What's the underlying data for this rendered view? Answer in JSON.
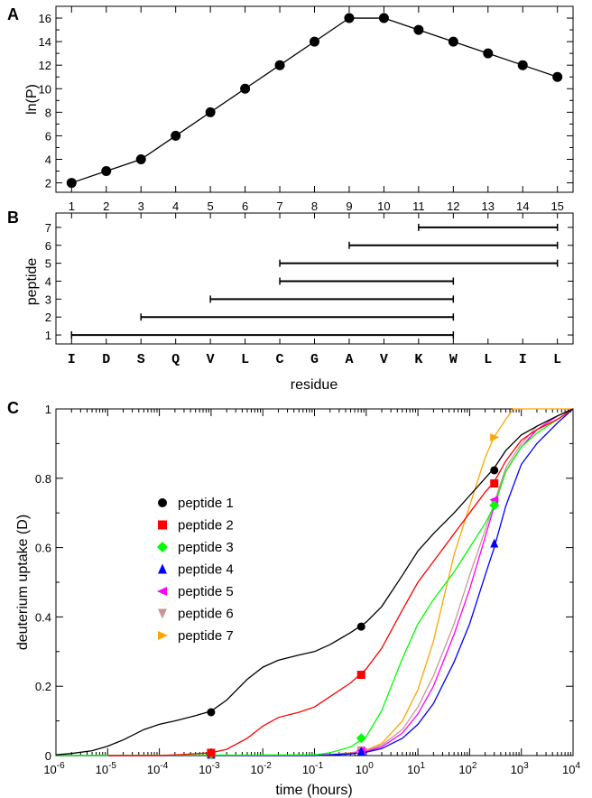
{
  "chart_data": [
    {
      "panel_label": "A",
      "type": "line",
      "xlabel": "",
      "ylabel": "ln(P)",
      "xlim": [
        0.55,
        15.45
      ],
      "ylim": [
        1.2,
        17
      ],
      "x_ticks": [
        1,
        2,
        3,
        4,
        5,
        6,
        7,
        8,
        9,
        10,
        11,
        12,
        13,
        14,
        15
      ],
      "y_ticks": [
        2,
        4,
        6,
        8,
        10,
        12,
        14,
        16
      ],
      "grid": false,
      "series": [
        {
          "x": [
            1,
            2,
            3,
            4,
            5,
            6,
            7,
            8,
            9,
            10,
            11,
            12,
            13,
            14,
            15
          ],
          "values": [
            2,
            3,
            4,
            6,
            8,
            10,
            12,
            14,
            16,
            16,
            15,
            14,
            13,
            12,
            11
          ],
          "color": "#000000",
          "marker": "circle"
        }
      ]
    },
    {
      "panel_label": "B",
      "type": "interval",
      "xlabel": "residue",
      "ylabel": "peptide",
      "residues": [
        "I",
        "D",
        "S",
        "Q",
        "V",
        "L",
        "C",
        "G",
        "A",
        "V",
        "K",
        "W",
        "L",
        "I",
        "L"
      ],
      "y_ticks": [
        1,
        2,
        3,
        4,
        5,
        6,
        7
      ],
      "ylim": [
        0.5,
        7.8
      ],
      "grid": false,
      "intervals": [
        {
          "peptide": 1,
          "start": 1,
          "end": 12
        },
        {
          "peptide": 2,
          "start": 3,
          "end": 12
        },
        {
          "peptide": 3,
          "start": 5,
          "end": 12
        },
        {
          "peptide": 4,
          "start": 7,
          "end": 12
        },
        {
          "peptide": 5,
          "start": 7,
          "end": 15
        },
        {
          "peptide": 6,
          "start": 9,
          "end": 15
        },
        {
          "peptide": 7,
          "start": 11,
          "end": 15
        }
      ]
    },
    {
      "panel_label": "C",
      "type": "line",
      "xlabel": "time (hours)",
      "ylabel": "deuterium uptake (D)",
      "xscale": "log",
      "xlim": [
        1e-06,
        10000
      ],
      "ylim": [
        0,
        1
      ],
      "x_tick_exponents": [
        "-6",
        "-5",
        "-4",
        "-3",
        "-2",
        "-1",
        "0",
        "1",
        "2",
        "3",
        "4"
      ],
      "x_tick_base": "10",
      "y_ticks": [
        "0",
        "0.2",
        "0.4",
        "0.6",
        "0.8",
        "1"
      ],
      "grid": false,
      "legend_position": "center-left",
      "series": [
        {
          "name": "peptide 1",
          "color": "#000000",
          "marker": "circle",
          "x": [
            1e-06,
            2e-06,
            5e-06,
            1e-05,
            2e-05,
            5e-05,
            0.0001,
            0.0002,
            0.0005,
            0.001,
            0.002,
            0.005,
            0.01,
            0.02,
            0.05,
            0.1,
            0.2,
            0.5,
            1,
            2,
            5,
            10,
            20,
            50,
            100,
            200,
            300,
            500,
            1000,
            2000,
            5000,
            10000
          ],
          "values": [
            0.002,
            0.006,
            0.014,
            0.027,
            0.045,
            0.075,
            0.09,
            0.1,
            0.115,
            0.128,
            0.16,
            0.22,
            0.255,
            0.275,
            0.29,
            0.3,
            0.32,
            0.355,
            0.385,
            0.43,
            0.52,
            0.59,
            0.64,
            0.7,
            0.75,
            0.8,
            0.83,
            0.88,
            0.925,
            0.95,
            0.98,
            1.0
          ],
          "marker_x": [
            0.001,
            0.8,
            300
          ],
          "marker_values": [
            0.125,
            0.372,
            0.823
          ]
        },
        {
          "name": "peptide 2",
          "color": "#ff0000",
          "marker": "square",
          "x": [
            1e-05,
            0.0001,
            0.0003,
            0.001,
            0.002,
            0.005,
            0.01,
            0.02,
            0.05,
            0.1,
            0.2,
            0.5,
            1,
            2,
            5,
            10,
            20,
            50,
            100,
            200,
            300,
            500,
            1000,
            2000,
            5000,
            10000
          ],
          "values": [
            0,
            0,
            0.003,
            0.008,
            0.018,
            0.05,
            0.085,
            0.11,
            0.125,
            0.14,
            0.17,
            0.21,
            0.25,
            0.31,
            0.42,
            0.5,
            0.56,
            0.64,
            0.7,
            0.76,
            0.79,
            0.85,
            0.91,
            0.94,
            0.97,
            1.0
          ],
          "marker_x": [
            0.001,
            0.8,
            300
          ],
          "marker_values": [
            0.008,
            0.233,
            0.785
          ]
        },
        {
          "name": "peptide 3",
          "color": "#00ff00",
          "marker": "diamond",
          "x": [
            1e-06,
            0.1,
            0.2,
            0.5,
            1,
            2,
            5,
            10,
            20,
            50,
            100,
            200,
            300,
            500,
            1000,
            2000,
            5000,
            10000
          ],
          "values": [
            0,
            0.002,
            0.008,
            0.025,
            0.055,
            0.13,
            0.28,
            0.38,
            0.45,
            0.53,
            0.6,
            0.67,
            0.72,
            0.82,
            0.89,
            0.93,
            0.97,
            1.0
          ],
          "marker_x": [
            0.001,
            0.8,
            300
          ],
          "marker_values": [
            0.004,
            0.05,
            0.722
          ]
        },
        {
          "name": "peptide 4",
          "color": "#0000ff",
          "marker": "triangle-up",
          "x": [
            1e-06,
            0.1,
            0.2,
            0.5,
            1,
            2,
            5,
            10,
            20,
            50,
            100,
            200,
            300,
            500,
            1000,
            2000,
            5000,
            10000
          ],
          "values": [
            0,
            0,
            0.002,
            0.005,
            0.01,
            0.02,
            0.05,
            0.09,
            0.15,
            0.27,
            0.38,
            0.52,
            0.6,
            0.72,
            0.84,
            0.9,
            0.96,
            1.0
          ],
          "marker_x": [
            0.001,
            0.8,
            300
          ],
          "marker_values": [
            0.003,
            0.012,
            0.612
          ]
        },
        {
          "name": "peptide 5",
          "color": "#ff00ff",
          "marker": "triangle-left",
          "x": [
            1e-06,
            0.1,
            0.2,
            0.5,
            1,
            2,
            5,
            10,
            20,
            50,
            100,
            200,
            300,
            500,
            1000,
            2000,
            5000,
            10000
          ],
          "values": [
            0,
            0,
            0.002,
            0.006,
            0.012,
            0.025,
            0.065,
            0.12,
            0.2,
            0.35,
            0.48,
            0.63,
            0.72,
            0.82,
            0.89,
            0.94,
            0.98,
            1.0
          ],
          "marker_x": [
            0.001,
            0.8,
            300
          ],
          "marker_values": [
            0.003,
            0.014,
            0.738
          ]
        },
        {
          "name": "peptide 6",
          "color": "#c99696",
          "marker": "triangle-down",
          "x": [
            1e-06,
            0.1,
            0.2,
            0.5,
            1,
            2,
            5,
            10,
            20,
            50,
            100,
            200,
            300,
            500,
            1000,
            2000,
            5000,
            10000
          ],
          "values": [
            0,
            0,
            0.003,
            0.007,
            0.014,
            0.03,
            0.075,
            0.14,
            0.23,
            0.38,
            0.52,
            0.65,
            0.73,
            0.83,
            0.9,
            0.95,
            0.98,
            1.0
          ],
          "marker_x": [
            0.001,
            0.8,
            300
          ],
          "marker_values": [
            0.002,
            0.015,
            0.728
          ]
        },
        {
          "name": "peptide 7",
          "color": "#ffa500",
          "marker": "triangle-right",
          "x": [
            1e-06,
            0.1,
            0.2,
            0.5,
            1,
            2,
            5,
            10,
            20,
            50,
            100,
            200,
            300,
            500,
            700,
            1000,
            10000
          ],
          "values": [
            0,
            0,
            0.003,
            0.008,
            0.016,
            0.035,
            0.1,
            0.19,
            0.33,
            0.58,
            0.72,
            0.86,
            0.92,
            0.97,
            1.0,
            1.0,
            1.0
          ],
          "marker_x": [
            0.001,
            0.8,
            300
          ],
          "marker_values": [
            0.002,
            0.016,
            0.918
          ]
        }
      ]
    }
  ]
}
